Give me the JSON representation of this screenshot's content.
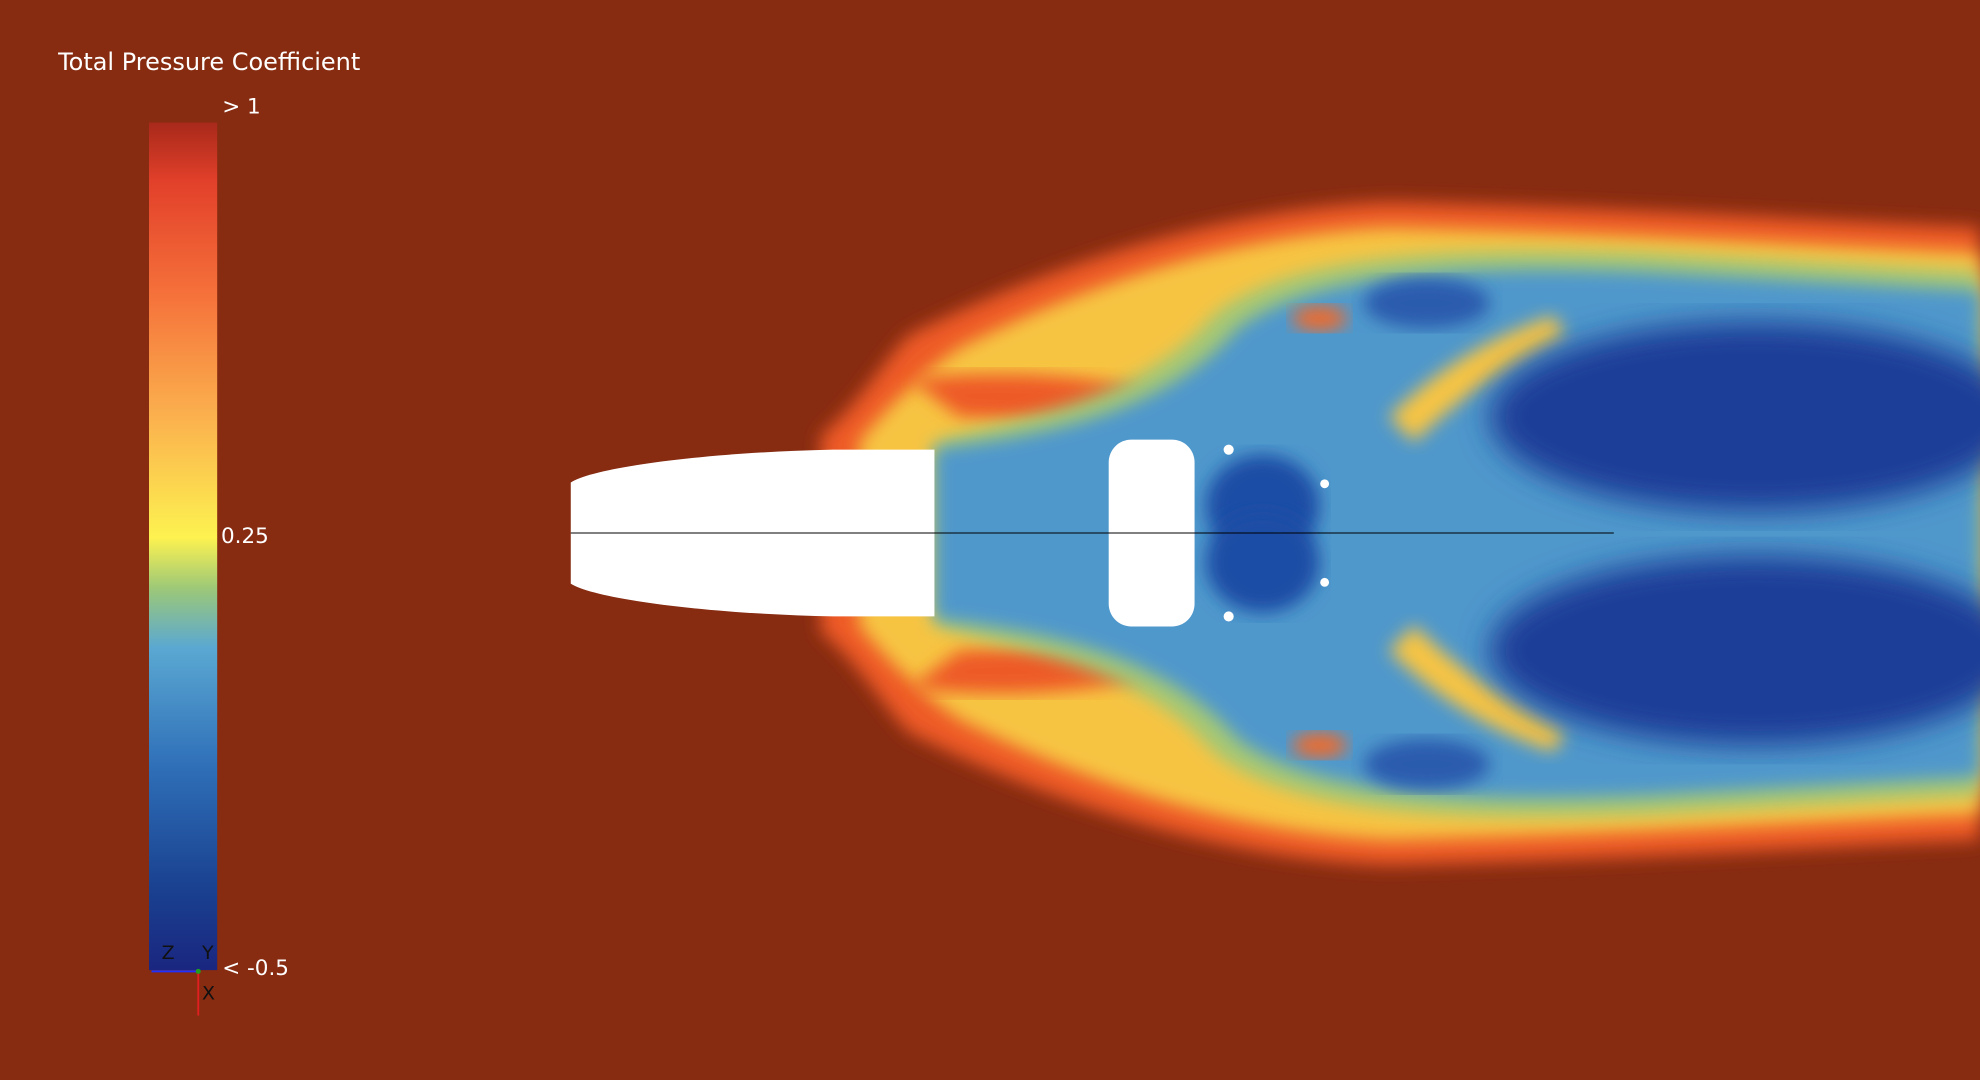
{
  "legend": {
    "title": "Total Pressure Coefficient",
    "max_label": "> 1",
    "mid_label": "0.25",
    "min_label": "< -0.5"
  },
  "axes_triad": {
    "z": "Z",
    "y": "Y",
    "x": "X"
  }
}
